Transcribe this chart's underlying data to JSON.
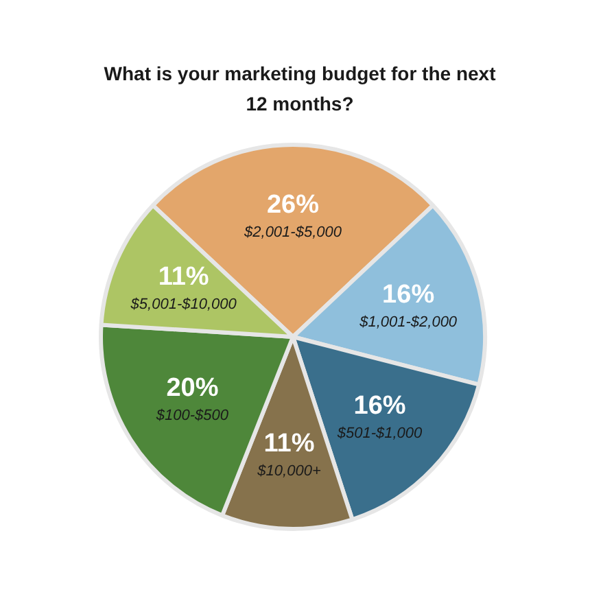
{
  "chart_data": {
    "type": "pie",
    "title": "What is your marketing budget for the next 12 months?",
    "categories": [
      "$2,001-$5,000",
      "$1,001-$2,000",
      "$501-$1,000",
      "$10,000+",
      "$100-$500",
      "$5,001-$10,000"
    ],
    "values": [
      26,
      16,
      16,
      11,
      20,
      11
    ],
    "colors": [
      "#e3a66b",
      "#8fbfdc",
      "#3a6f8c",
      "#86724c",
      "#4e873a",
      "#adc564"
    ],
    "value_labels": [
      "26%",
      "16%",
      "16%",
      "11%",
      "20%",
      "11%"
    ]
  }
}
